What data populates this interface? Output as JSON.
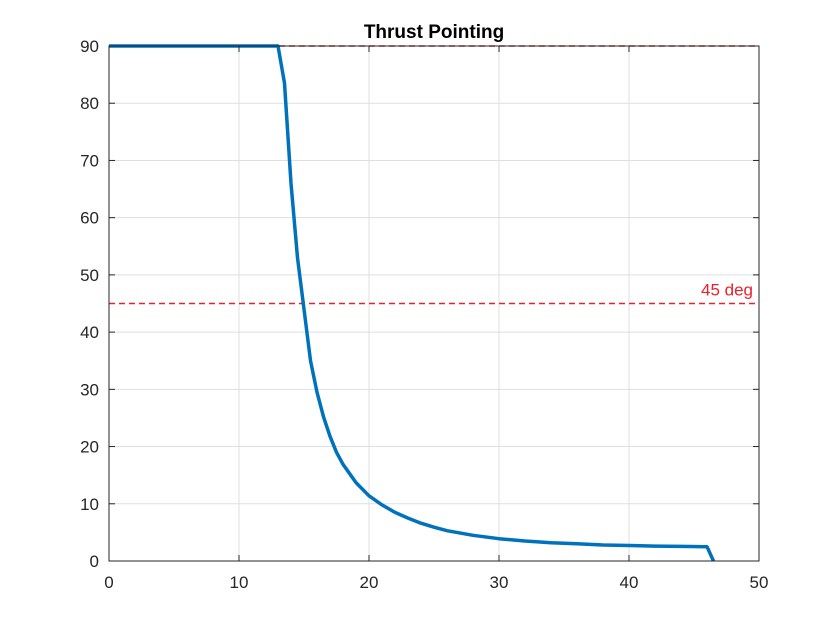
{
  "chart_data": {
    "type": "line",
    "title": "Thrust Pointing",
    "xlabel": "",
    "ylabel": "",
    "xlim": [
      0,
      50
    ],
    "ylim": [
      0,
      90
    ],
    "xticks": [
      0,
      10,
      20,
      30,
      40,
      50
    ],
    "yticks": [
      0,
      10,
      20,
      30,
      40,
      50,
      60,
      70,
      80,
      90
    ],
    "grid": true,
    "series": [
      {
        "color": "#0072BD",
        "x": [
          0,
          13.0,
          13.5,
          14.0,
          14.5,
          15.0,
          15.5,
          16.0,
          16.5,
          17.0,
          17.5,
          18.0,
          19.0,
          20.0,
          21.0,
          22.0,
          23.0,
          24.0,
          25.0,
          26.0,
          28.0,
          30.0,
          32.0,
          34.0,
          36.0,
          38.0,
          40.0,
          42.0,
          44.0,
          46.0,
          46.5
        ],
        "y": [
          90,
          90,
          83.5,
          66,
          53,
          44,
          35,
          29.5,
          25.2,
          21.8,
          19.0,
          16.9,
          13.7,
          11.4,
          9.8,
          8.5,
          7.5,
          6.6,
          5.9,
          5.3,
          4.5,
          3.9,
          3.5,
          3.2,
          3.0,
          2.8,
          2.7,
          2.6,
          2.55,
          2.5,
          0
        ]
      }
    ],
    "reference_lines": [
      {
        "y": 90,
        "color": "#E8222A",
        "style": "dashed",
        "label": ""
      },
      {
        "y": 45,
        "color": "#E8222A",
        "style": "dashed",
        "label": "45 deg"
      }
    ]
  }
}
